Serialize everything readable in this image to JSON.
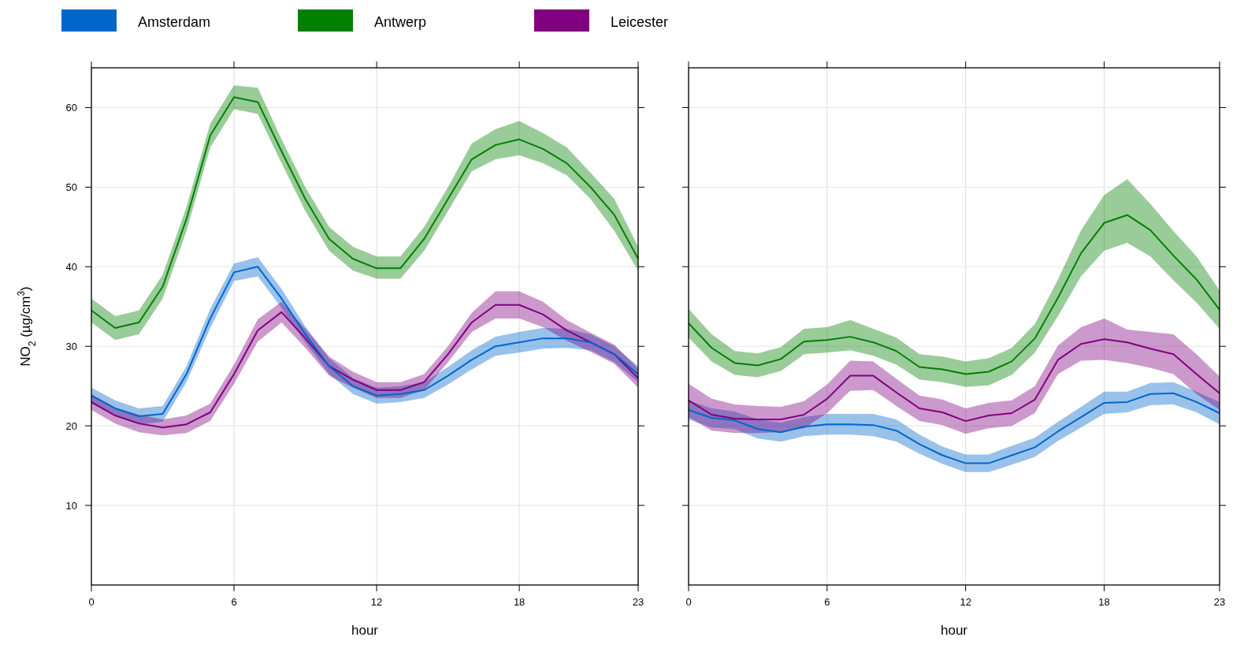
{
  "chart_data": [
    {
      "type": "line",
      "xlabel": "hour",
      "ylabel": "NO$_{2}$ (µg/cm$^{3}$)",
      "x": [
        0,
        1,
        2,
        3,
        4,
        5,
        6,
        7,
        8,
        9,
        10,
        11,
        12,
        13,
        14,
        15,
        16,
        17,
        18,
        19,
        20,
        21,
        22,
        23
      ],
      "xlim": [
        0,
        23
      ],
      "xticks": [
        0,
        6,
        12,
        18,
        23
      ],
      "ylim": [
        0,
        65
      ],
      "yticks": [
        10,
        20,
        30,
        40,
        50,
        60
      ],
      "grid": true,
      "legend": "top",
      "marker": "none",
      "line_style": "solid",
      "series": [
        {
          "name": "Amsterdam",
          "color": "#0066cc",
          "values": [
            23.8,
            22.2,
            21.2,
            21.5,
            26.5,
            33.5,
            39.3,
            40,
            36,
            31.5,
            27.5,
            25,
            23.8,
            24,
            24.5,
            26.3,
            28.3,
            30,
            30.5,
            31,
            31,
            30.5,
            29,
            26.5
          ],
          "lower": [
            22.8,
            21.2,
            20.2,
            20.5,
            25.5,
            32.3,
            38.2,
            38.8,
            34.8,
            30.5,
            26.5,
            24,
            22.8,
            23,
            23.5,
            25.2,
            27.1,
            28.8,
            29.2,
            29.7,
            29.8,
            29.5,
            28,
            25.5
          ],
          "upper": [
            24.8,
            23.2,
            22.2,
            22.5,
            27.5,
            34.7,
            40.4,
            41.2,
            37.2,
            32.5,
            28.5,
            26,
            24.8,
            25,
            25.5,
            27.4,
            29.5,
            31.2,
            31.8,
            32.3,
            32.2,
            31.5,
            30,
            27.5
          ]
        },
        {
          "name": "Antwerp",
          "color": "#008000",
          "values": [
            34.5,
            32.3,
            33,
            37.5,
            46,
            56.5,
            61.3,
            60.7,
            54.5,
            48.5,
            43.5,
            41,
            39.8,
            39.8,
            43.5,
            48.5,
            53.5,
            55.3,
            56,
            54.8,
            53,
            50,
            46.5,
            41
          ],
          "lower": [
            33,
            30.8,
            31.5,
            36,
            44.5,
            55,
            59.8,
            59.2,
            53,
            47,
            42,
            39.5,
            38.5,
            38.5,
            42,
            47,
            52,
            53.5,
            54,
            53,
            51.5,
            48.5,
            44.5,
            39.5
          ],
          "upper": [
            36,
            33.8,
            34.5,
            39,
            47.5,
            58,
            62.8,
            62.5,
            56,
            50,
            45,
            42.5,
            41.3,
            41.3,
            45,
            50,
            55.5,
            57.3,
            58.3,
            56.8,
            55,
            51.8,
            48.5,
            42.5
          ]
        },
        {
          "name": "Leicester",
          "color": "#800080",
          "values": [
            23,
            21.3,
            20.3,
            19.8,
            20.2,
            21.7,
            26.5,
            32,
            34.3,
            31,
            27.5,
            25.8,
            24.5,
            24.5,
            25.5,
            29,
            33,
            35.2,
            35.2,
            34,
            32,
            30.5,
            29,
            26
          ],
          "lower": [
            22,
            20.3,
            19.2,
            18.8,
            19.1,
            20.6,
            25.3,
            30.6,
            33,
            29.8,
            26.3,
            24.8,
            23.5,
            23.5,
            24.5,
            28,
            31.8,
            33.5,
            33.5,
            32.4,
            30.7,
            29.3,
            27.8,
            24.8
          ],
          "upper": [
            24,
            22.3,
            21.4,
            20.8,
            21.3,
            22.8,
            27.7,
            33.4,
            35.6,
            32.2,
            28.7,
            26.8,
            25.5,
            25.5,
            26.5,
            30,
            34.2,
            36.9,
            36.9,
            35.6,
            33.3,
            31.7,
            30.2,
            27.2
          ]
        }
      ]
    },
    {
      "type": "line",
      "xlabel": "hour",
      "x": [
        0,
        1,
        2,
        3,
        4,
        5,
        6,
        7,
        8,
        9,
        10,
        11,
        12,
        13,
        14,
        15,
        16,
        17,
        18,
        19,
        20,
        21,
        22,
        23
      ],
      "xlim": [
        0,
        23
      ],
      "xticks": [
        0,
        6,
        12,
        18,
        23
      ],
      "ylim": [
        0,
        65
      ],
      "yticks": [
        10,
        20,
        30,
        40,
        50,
        60
      ],
      "tick_labels": "x",
      "grid": true,
      "marker": "none",
      "line_style": "solid",
      "series": [
        {
          "color": "#0066cc",
          "values": [
            22,
            21,
            20.7,
            19.6,
            19.2,
            19.9,
            20.2,
            20.2,
            20.1,
            19.4,
            17.7,
            16.3,
            15.3,
            15.3,
            16.3,
            17.3,
            19.3,
            21.1,
            22.9,
            23,
            24,
            24.1,
            23,
            21.6
          ],
          "lower": [
            20.8,
            19.8,
            19.6,
            18.4,
            18,
            18.7,
            18.9,
            18.9,
            18.7,
            18,
            16.5,
            15.2,
            14.2,
            14.2,
            15.1,
            16.1,
            18.1,
            19.8,
            21.5,
            21.7,
            22.6,
            22.7,
            21.7,
            20.2
          ],
          "upper": [
            23.2,
            22.2,
            21.8,
            20.8,
            20.4,
            21.1,
            21.5,
            21.5,
            21.5,
            20.8,
            18.9,
            17.4,
            16.4,
            16.4,
            17.5,
            18.5,
            20.5,
            22.4,
            24.3,
            24.3,
            25.4,
            25.5,
            24.3,
            23
          ]
        },
        {
          "color": "#008000",
          "values": [
            32.9,
            29.8,
            27.9,
            27.6,
            28.4,
            30.6,
            30.8,
            31.2,
            30.5,
            29.4,
            27.4,
            27.1,
            26.5,
            26.8,
            28.1,
            31,
            36.1,
            41.7,
            45.5,
            46.5,
            44.6,
            41.4,
            38.4,
            34.6
          ],
          "lower": [
            31.1,
            28.1,
            26.4,
            26.1,
            26.9,
            29,
            29.2,
            29.5,
            28.8,
            27.7,
            25.8,
            25.5,
            24.9,
            25.1,
            26.4,
            29.2,
            33.8,
            38.8,
            42,
            43,
            41.3,
            38.3,
            35.5,
            32.2
          ],
          "upper": [
            34.7,
            31.5,
            29.4,
            29.1,
            29.9,
            32.2,
            32.4,
            33.3,
            32.2,
            31.1,
            29,
            28.7,
            28.1,
            28.5,
            29.8,
            32.8,
            38.4,
            44.6,
            49,
            51,
            47.9,
            44.5,
            41.3,
            37
          ]
        },
        {
          "color": "#800080",
          "values": [
            23.2,
            21.4,
            20.9,
            20.8,
            20.8,
            21.4,
            23.4,
            26.3,
            26.3,
            24.2,
            22.2,
            21.7,
            20.6,
            21.3,
            21.6,
            23.3,
            28.3,
            30.3,
            30.9,
            30.5,
            29.7,
            29,
            26.5,
            24.1
          ],
          "lower": [
            21.1,
            19.4,
            19.1,
            19.1,
            19.2,
            19.7,
            21.6,
            24.4,
            24.5,
            22.5,
            20.6,
            20.1,
            19,
            19.7,
            20,
            21.6,
            26.5,
            28.2,
            28.3,
            27.9,
            27.3,
            26.5,
            24,
            22
          ],
          "upper": [
            25.3,
            23.4,
            22.7,
            22.5,
            22.4,
            23.1,
            25.2,
            28.2,
            28.1,
            25.9,
            23.8,
            23.3,
            22.2,
            22.9,
            23.2,
            25,
            30.1,
            32.4,
            33.5,
            32.1,
            31.8,
            31.5,
            29,
            26.2
          ]
        }
      ]
    }
  ]
}
